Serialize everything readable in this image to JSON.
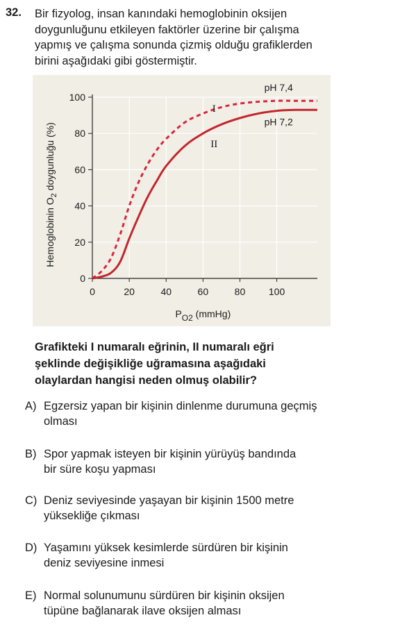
{
  "question": {
    "number": "32.",
    "stem_lines": [
      "Bir fizyolog, insan kanındaki hemoglobinin oksijen",
      "doygunluğunu etkileyen faktörler üzerine bir çalışma",
      "yapmış ve çalışma sonunda çizmiş olduğu grafiklerden",
      "birini aşağıdaki gibi göstermiştir."
    ],
    "prompt_lines": [
      "Grafikteki I numaralı eğrinin, II numaralı eğri",
      "şeklinde değişikliğe uğramasına aşağıdaki",
      "olaylardan hangisi neden olmuş olabilir?"
    ],
    "options": [
      {
        "letter": "A)",
        "lines": [
          "Egzersiz yapan bir kişinin dinlenme durumuna geçmiş",
          "olması"
        ]
      },
      {
        "letter": "B)",
        "lines": [
          "Spor yapmak isteyen bir kişinin yürüyüş bandında",
          "bir süre koşu yapması"
        ]
      },
      {
        "letter": "C)",
        "lines": [
          "Deniz seviyesinde yaşayan bir kişinin 1500 metre",
          "yüksekliğe çıkması"
        ]
      },
      {
        "letter": "D)",
        "lines": [
          "Yaşamını yüksek kesimlerde sürdüren bir kişinin",
          "deniz seviyesine inmesi"
        ]
      },
      {
        "letter": "E)",
        "lines": [
          "Normal solunumunu sürdüren bir kişinin oksijen",
          "tüpüne bağlanarak ilave oksijen alması"
        ]
      }
    ]
  },
  "chart_data": {
    "type": "line",
    "xlabel_main": "P",
    "xlabel_sub": "O2",
    "xlabel_unit": "(mmHg)",
    "ylabel_main": "Hemoglobinin O",
    "ylabel_sub": "2",
    "ylabel_rest": " doygunluğu (%)",
    "xlim": [
      0,
      122
    ],
    "ylim": [
      0,
      100
    ],
    "x_ticks": [
      0,
      20,
      40,
      60,
      80,
      100
    ],
    "y_ticks": [
      0,
      20,
      40,
      60,
      80,
      100
    ],
    "grid": true,
    "series": [
      {
        "name": "pH 7,4",
        "roman": "I",
        "style": "dashed",
        "color": "#d7263d",
        "points": [
          [
            0,
            0
          ],
          [
            5,
            4
          ],
          [
            10,
            11
          ],
          [
            15,
            24
          ],
          [
            20,
            40
          ],
          [
            25,
            53
          ],
          [
            30,
            63
          ],
          [
            35,
            71
          ],
          [
            40,
            77
          ],
          [
            50,
            86
          ],
          [
            60,
            91
          ],
          [
            70,
            94.5
          ],
          [
            80,
            96.5
          ],
          [
            90,
            97.5
          ],
          [
            100,
            98
          ],
          [
            110,
            98
          ],
          [
            122,
            98
          ]
        ]
      },
      {
        "name": "pH 7,2",
        "roman": "II",
        "style": "solid",
        "color": "#c1272d",
        "points": [
          [
            0,
            0
          ],
          [
            5,
            1
          ],
          [
            10,
            3
          ],
          [
            15,
            9
          ],
          [
            20,
            22
          ],
          [
            25,
            34
          ],
          [
            30,
            45
          ],
          [
            35,
            54
          ],
          [
            40,
            62
          ],
          [
            50,
            73
          ],
          [
            60,
            80
          ],
          [
            70,
            85
          ],
          [
            80,
            88.5
          ],
          [
            90,
            91
          ],
          [
            100,
            92.5
          ],
          [
            110,
            93
          ],
          [
            122,
            93
          ]
        ]
      }
    ]
  }
}
